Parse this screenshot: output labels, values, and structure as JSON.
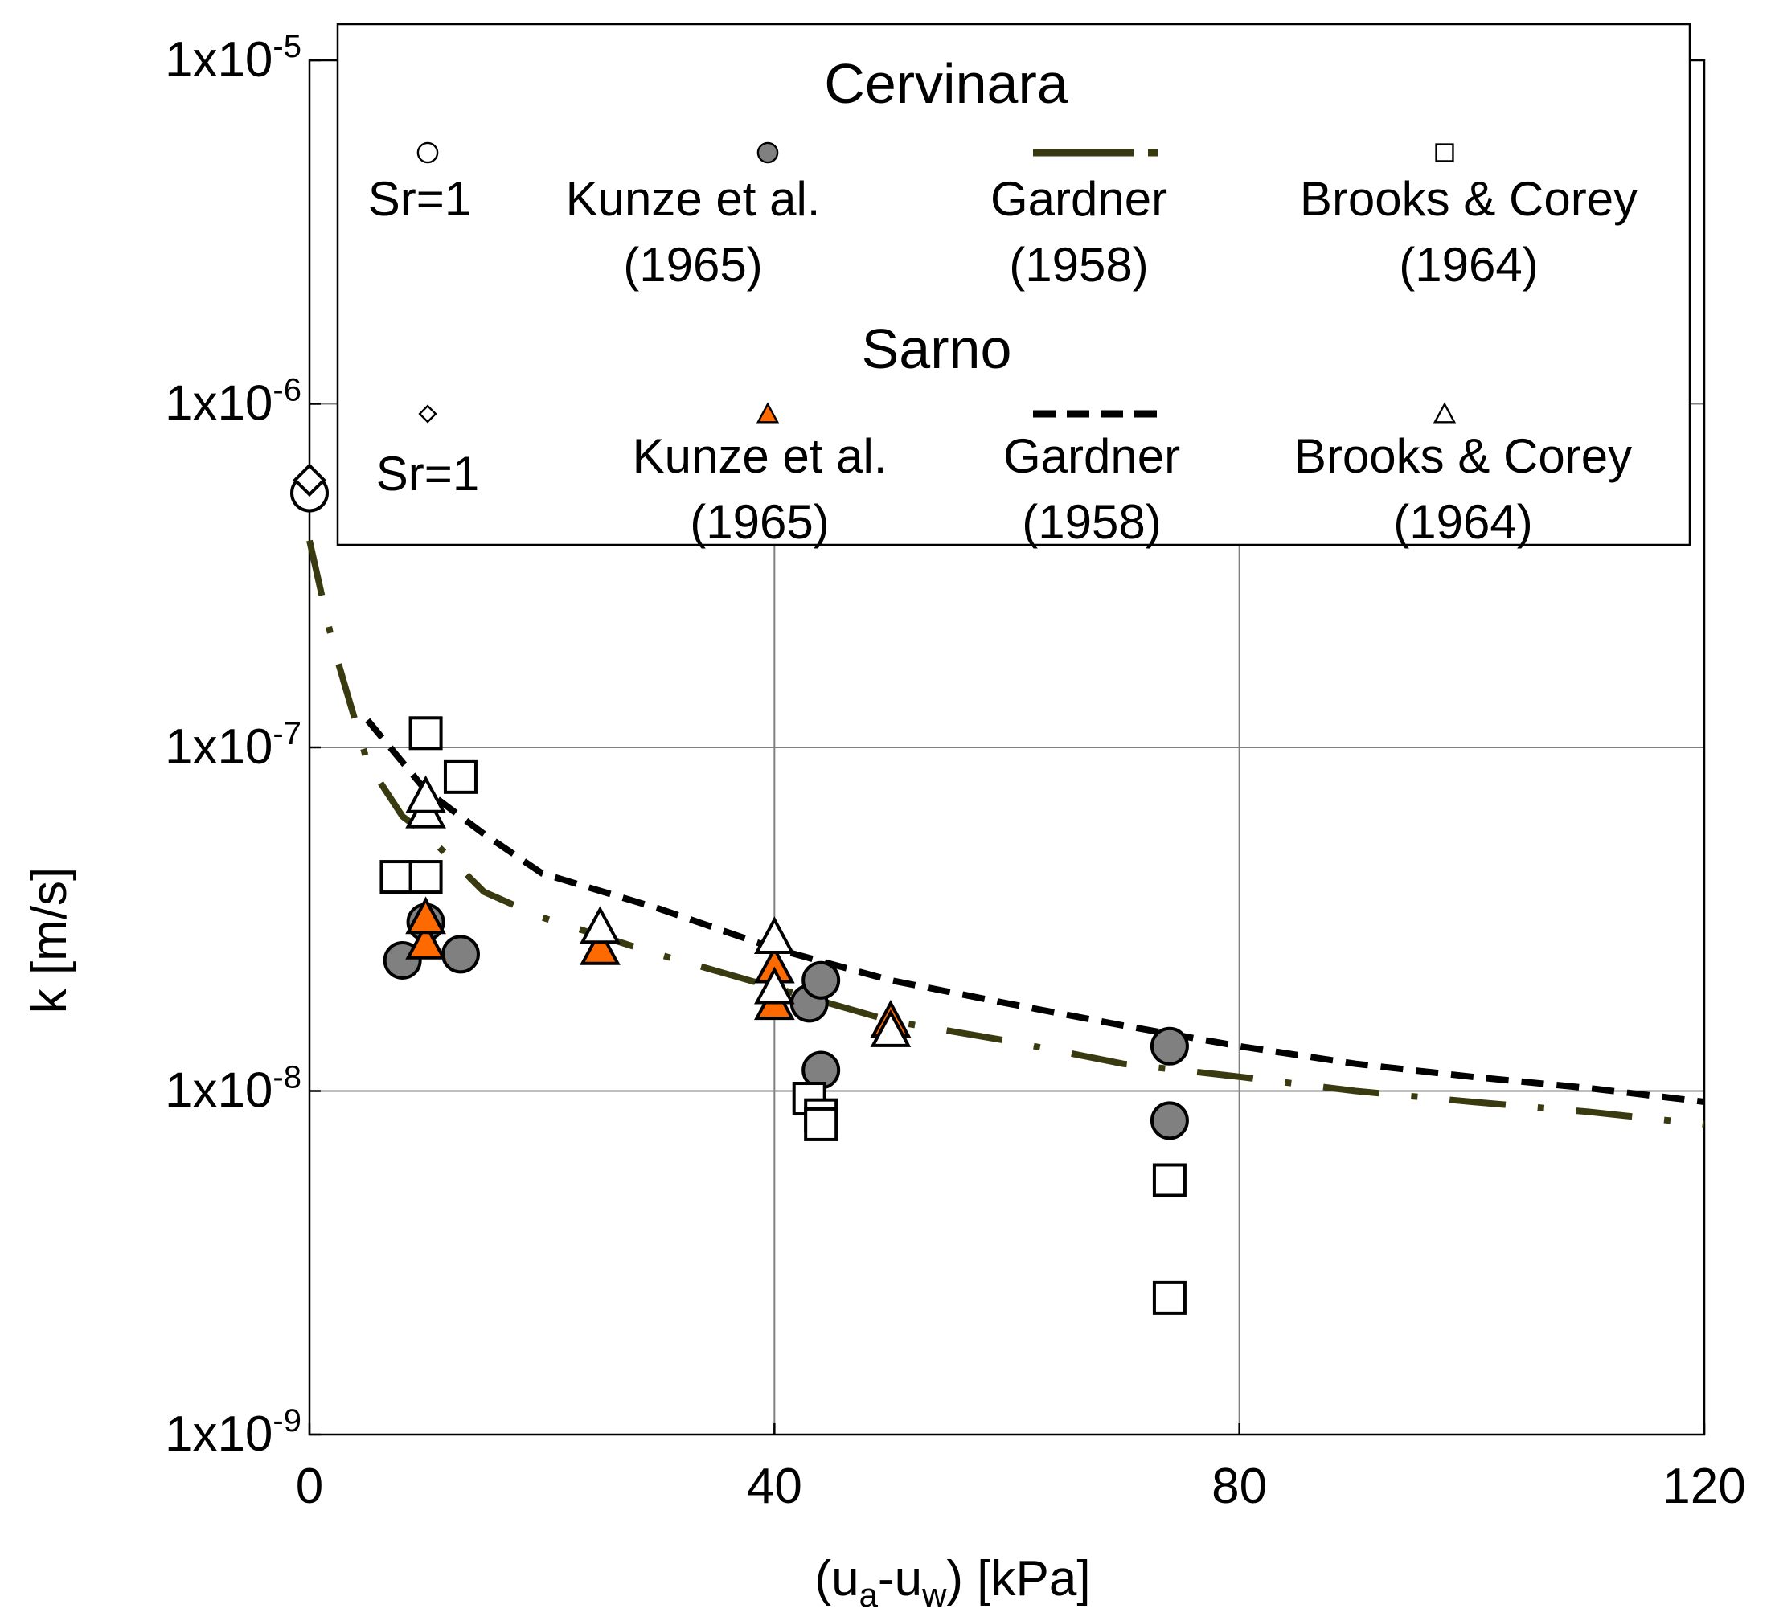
{
  "chart_data": {
    "type": "scatter",
    "xlabel": {
      "pre": "(u",
      "sub1": "a",
      "mid": "-u",
      "sub2": "w",
      "post": ") [kPa]"
    },
    "ylabel": "k [m/s]",
    "xlim": [
      0,
      120
    ],
    "ylim": [
      1e-09,
      1e-05
    ],
    "yscale": "log",
    "grid": true,
    "legend_placement": "top",
    "x_ticks": [
      "0",
      "40",
      "80",
      "120"
    ],
    "y_ticks": [
      {
        "mantissa": "1x10",
        "exp": "-5"
      },
      {
        "mantissa": "1x10",
        "exp": "-6"
      },
      {
        "mantissa": "1x10",
        "exp": "-7"
      },
      {
        "mantissa": "1x10",
        "exp": "-8"
      },
      {
        "mantissa": "1x10",
        "exp": "-9"
      }
    ],
    "colors": {
      "cervinara_gardner": "#3a3a10",
      "sarno_gardner": "#000000",
      "sarno_kunze": "#ff6a00",
      "cervinara_kunze": "#808080"
    },
    "legend": {
      "cervinara_title": "Cervinara",
      "sarno_title": "Sarno",
      "cervinara": [
        {
          "key": "sr1",
          "lines": [
            "Sr=1"
          ]
        },
        {
          "key": "kunze",
          "lines": [
            "Kunze et al.",
            "(1965)"
          ]
        },
        {
          "key": "gardner",
          "lines": [
            "Gardner",
            "(1958)"
          ]
        },
        {
          "key": "brooks",
          "lines": [
            "Brooks & Corey",
            "(1964)"
          ]
        }
      ],
      "sarno": [
        {
          "key": "sr1",
          "lines": [
            "Sr=1"
          ]
        },
        {
          "key": "kunze",
          "lines": [
            "Kunze et al.",
            "(1965)"
          ]
        },
        {
          "key": "gardner",
          "lines": [
            "Gardner",
            "(1958)"
          ]
        },
        {
          "key": "brooks",
          "lines": [
            "Brooks & Corey",
            "(1964)"
          ]
        }
      ]
    },
    "series": [
      {
        "id": "cervinara_sr1",
        "marker": "circle-open",
        "points": [
          [
            0,
            5.5e-07
          ]
        ]
      },
      {
        "id": "cervinara_kunze",
        "marker": "circle-filled",
        "points": [
          [
            8,
            2.4e-08
          ],
          [
            10,
            3.1e-08
          ],
          [
            13,
            2.5e-08
          ],
          [
            43,
            1.8e-08
          ],
          [
            44,
            2.1e-08
          ],
          [
            44,
            1.15e-08
          ],
          [
            74,
            1.35e-08
          ],
          [
            74,
            8.2e-09
          ]
        ]
      },
      {
        "id": "cervinara_brooks",
        "marker": "square-open",
        "points": [
          [
            10,
            1.1e-07
          ],
          [
            13,
            8.2e-08
          ],
          [
            7.5,
            4.2e-08
          ],
          [
            10,
            4.2e-08
          ],
          [
            43,
            9.5e-09
          ],
          [
            44,
            8.5e-09
          ],
          [
            44,
            8e-09
          ],
          [
            74,
            5.5e-09
          ],
          [
            74,
            2.5e-09
          ]
        ]
      },
      {
        "id": "cervinara_gardner",
        "marker": "dash-dot-line",
        "points": [
          [
            0,
            4e-07
          ],
          [
            2,
            2e-07
          ],
          [
            5,
            9e-08
          ],
          [
            8,
            6.3e-08
          ],
          [
            10,
            5.6e-08
          ],
          [
            15,
            3.8e-08
          ],
          [
            20,
            3.2e-08
          ],
          [
            30,
            2.5e-08
          ],
          [
            40,
            2e-08
          ],
          [
            50,
            1.6e-08
          ],
          [
            60,
            1.4e-08
          ],
          [
            70,
            1.2e-08
          ],
          [
            80,
            1.1e-08
          ],
          [
            90,
            1e-08
          ],
          [
            100,
            9.3e-09
          ],
          [
            110,
            8.7e-09
          ],
          [
            120,
            8e-09
          ]
        ]
      },
      {
        "id": "sarno_sr1",
        "marker": "diamond-open",
        "points": [
          [
            0,
            6e-07
          ]
        ]
      },
      {
        "id": "sarno_kunze",
        "marker": "triangle-filled",
        "points": [
          [
            10,
            2.7e-08
          ],
          [
            10,
            3.2e-08
          ],
          [
            25,
            2.6e-08
          ],
          [
            40,
            1.8e-08
          ],
          [
            40,
            2.3e-08
          ],
          [
            50,
            1.6e-08
          ]
        ]
      },
      {
        "id": "sarno_brooks",
        "marker": "triangle-open",
        "points": [
          [
            10,
            6.5e-08
          ],
          [
            10,
            7.2e-08
          ],
          [
            25,
            3e-08
          ],
          [
            40,
            2.8e-08
          ],
          [
            40,
            2e-08
          ],
          [
            50,
            1.5e-08
          ]
        ]
      },
      {
        "id": "sarno_gardner",
        "marker": "dashed-line",
        "points": [
          [
            5,
            1.2e-07
          ],
          [
            10,
            7.5e-08
          ],
          [
            15,
            5.6e-08
          ],
          [
            20,
            4.3e-08
          ],
          [
            30,
            3.4e-08
          ],
          [
            40,
            2.6e-08
          ],
          [
            50,
            2.1e-08
          ],
          [
            60,
            1.8e-08
          ],
          [
            70,
            1.55e-08
          ],
          [
            80,
            1.35e-08
          ],
          [
            90,
            1.2e-08
          ],
          [
            100,
            1.1e-08
          ],
          [
            110,
            1.02e-08
          ],
          [
            120,
            9.3e-09
          ]
        ]
      }
    ]
  }
}
